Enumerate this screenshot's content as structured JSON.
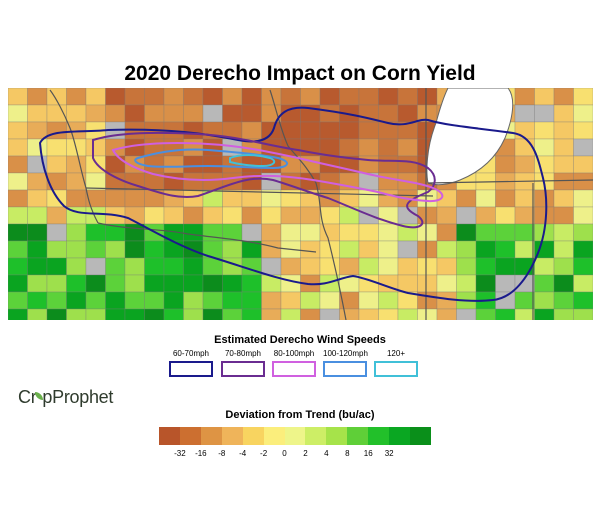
{
  "title": "2020 Derecho Impact on Corn Yield",
  "wind_legend": {
    "title": "Estimated Derecho Wind Speeds",
    "items": [
      {
        "label": "60-70mph",
        "color": "#1a1a8c"
      },
      {
        "label": "70-80mph",
        "color": "#6a2c91"
      },
      {
        "label": "80-100mph",
        "color": "#d060e0"
      },
      {
        "label": "100-120mph",
        "color": "#4a8fe0"
      },
      {
        "label": "120+",
        "color": "#40c0d8"
      }
    ]
  },
  "logo": {
    "prefix": "Cr",
    "suffix": "pProphet"
  },
  "deviation_legend": {
    "title": "Deviation from Trend (bu/ac)",
    "colors": [
      "#b8552a",
      "#cc6f30",
      "#de9444",
      "#efb45a",
      "#f8d460",
      "#fbee7c",
      "#eef58a",
      "#cdee66",
      "#a6e34a",
      "#5fcf38",
      "#22c02a",
      "#0aa722",
      "#0a8f1a"
    ],
    "ticks": [
      "-32",
      "-16",
      "-8",
      "-4",
      "-2",
      "0",
      "2",
      "4",
      "8",
      "16",
      "32"
    ]
  },
  "map": {
    "fill_colors": [
      "#b85a2e",
      "#c8743a",
      "#d99048",
      "#e8ac58",
      "#f5c864",
      "#f8e070",
      "#eef08a",
      "#c8ec64",
      "#9ee04c",
      "#5cd23a",
      "#1ec02a",
      "#0aa420",
      "#0c8c1c",
      "#b8b8b8"
    ]
  }
}
